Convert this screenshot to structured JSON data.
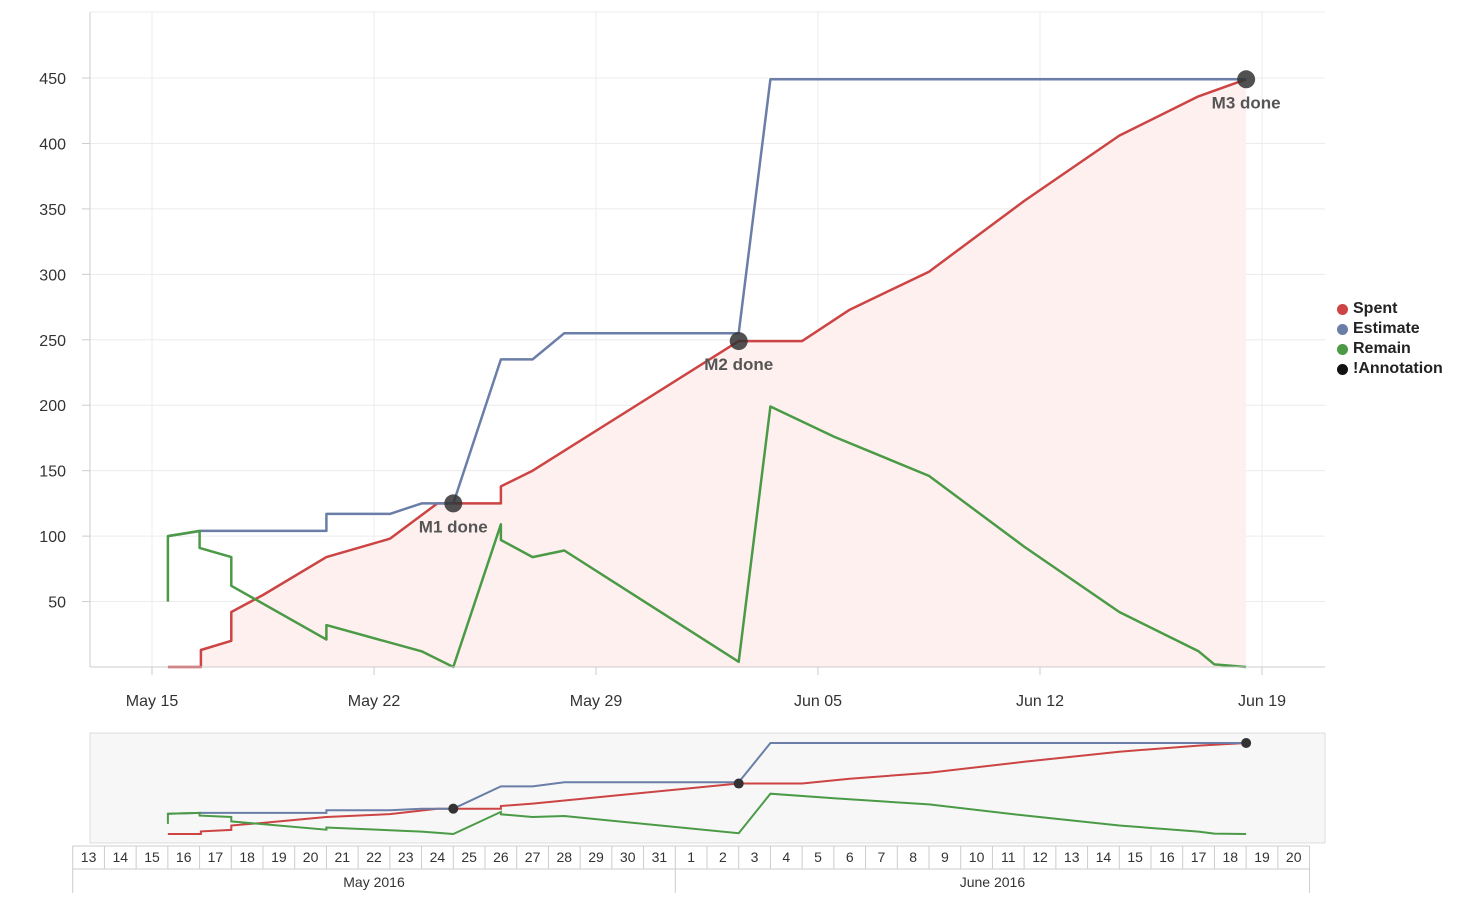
{
  "chart_data": {
    "type": "line",
    "ylim": [
      0,
      500
    ],
    "y_ticks": [
      50,
      100,
      150,
      200,
      250,
      300,
      350,
      400,
      450
    ],
    "x_ticks": [
      {
        "date": "2016-05-15",
        "label": "May 15"
      },
      {
        "date": "2016-05-22",
        "label": "May 22"
      },
      {
        "date": "2016-05-29",
        "label": "May 29"
      },
      {
        "date": "2016-06-05",
        "label": "Jun 05"
      },
      {
        "date": "2016-06-12",
        "label": "Jun 12"
      },
      {
        "date": "2016-06-19",
        "label": "Jun 19"
      }
    ],
    "grid": true,
    "legend_position": "right",
    "legend": [
      {
        "label": "Spent",
        "color": "#cc4444"
      },
      {
        "label": "Estimate",
        "color": "#6a7ea8"
      },
      {
        "label": "Remain",
        "color": "#4a9a46"
      },
      {
        "label": "!Annotation",
        "color": "#111111"
      }
    ],
    "series": [
      {
        "name": "Spent",
        "color": "#cc4444",
        "fill": "#fff0f0",
        "points": [
          [
            "2016-05-15 12:00",
            0
          ],
          [
            "2016-05-16 13:00",
            0
          ],
          [
            "2016-05-16 13:00",
            13
          ],
          [
            "2016-05-17 12:00",
            20
          ],
          [
            "2016-05-17 12:00",
            42
          ],
          [
            "2016-05-18 12:00",
            55
          ],
          [
            "2016-05-20 12:00",
            84
          ],
          [
            "2016-05-22 12:00",
            98
          ],
          [
            "2016-05-24 00:00",
            125
          ],
          [
            "2016-05-26 00:00",
            125
          ],
          [
            "2016-05-26 00:00",
            138
          ],
          [
            "2016-05-27 00:00",
            150
          ],
          [
            "2016-06-02 12:00",
            249
          ],
          [
            "2016-06-04 12:00",
            249
          ],
          [
            "2016-06-06 00:00",
            273
          ],
          [
            "2016-06-08 12:00",
            302
          ],
          [
            "2016-06-11 12:00",
            356
          ],
          [
            "2016-06-14 12:00",
            406
          ],
          [
            "2016-06-17 00:00",
            436
          ],
          [
            "2016-06-18 12:00",
            449
          ]
        ]
      },
      {
        "name": "Estimate",
        "color": "#6a7ea8",
        "points": [
          [
            "2016-05-15 12:00",
            100
          ],
          [
            "2016-05-16 13:00",
            104
          ],
          [
            "2016-05-20 12:00",
            104
          ],
          [
            "2016-05-20 12:00",
            117
          ],
          [
            "2016-05-22 12:00",
            117
          ],
          [
            "2016-05-23 12:00",
            125
          ],
          [
            "2016-05-24 12:00",
            125
          ],
          [
            "2016-05-26 00:00",
            235
          ],
          [
            "2016-05-27 00:00",
            235
          ],
          [
            "2016-05-28 00:00",
            255
          ],
          [
            "2016-06-02 12:00",
            255
          ],
          [
            "2016-06-03 12:00",
            449
          ],
          [
            "2016-06-18 12:00",
            449
          ]
        ]
      },
      {
        "name": "Remain",
        "color": "#4a9a46",
        "points": [
          [
            "2016-05-15 12:00",
            50
          ],
          [
            "2016-05-15 12:00",
            100
          ],
          [
            "2016-05-16 12:00",
            104
          ],
          [
            "2016-05-16 12:00",
            91
          ],
          [
            "2016-05-17 12:00",
            84
          ],
          [
            "2016-05-17 12:00",
            62
          ],
          [
            "2016-05-20 12:00",
            21
          ],
          [
            "2016-05-20 12:00",
            32
          ],
          [
            "2016-05-23 12:00",
            12
          ],
          [
            "2016-05-24 12:00",
            0
          ],
          [
            "2016-05-26 00:00",
            109
          ],
          [
            "2016-05-26 00:00",
            97
          ],
          [
            "2016-05-27 00:00",
            84
          ],
          [
            "2016-05-28 00:00",
            89
          ],
          [
            "2016-06-02 12:00",
            4
          ],
          [
            "2016-06-03 12:00",
            199
          ],
          [
            "2016-06-05 12:00",
            176
          ],
          [
            "2016-06-08 12:00",
            146
          ],
          [
            "2016-06-11 12:00",
            92
          ],
          [
            "2016-06-14 12:00",
            42
          ],
          [
            "2016-06-17 00:00",
            12
          ],
          [
            "2016-06-17 12:00",
            2
          ],
          [
            "2016-06-18 12:00",
            0
          ]
        ]
      }
    ],
    "annotations": [
      {
        "label": "M1 done",
        "date": "2016-05-24 12:00",
        "value": 125
      },
      {
        "label": "M2 done",
        "date": "2016-06-02 12:00",
        "value": 249
      },
      {
        "label": "M3 done",
        "date": "2016-06-18 12:00",
        "value": 449
      }
    ],
    "navigator": {
      "days_may": [
        "13",
        "14",
        "15",
        "16",
        "17",
        "18",
        "19",
        "20",
        "21",
        "22",
        "23",
        "24",
        "25",
        "26",
        "27",
        "28",
        "29",
        "30",
        "31"
      ],
      "days_june": [
        "1",
        "2",
        "3",
        "4",
        "5",
        "6",
        "7",
        "8",
        "9",
        "10",
        "11",
        "12",
        "13",
        "14",
        "15",
        "16",
        "17",
        "18",
        "19",
        "20"
      ],
      "month_labels": [
        "May 2016",
        "June 2016"
      ]
    }
  }
}
